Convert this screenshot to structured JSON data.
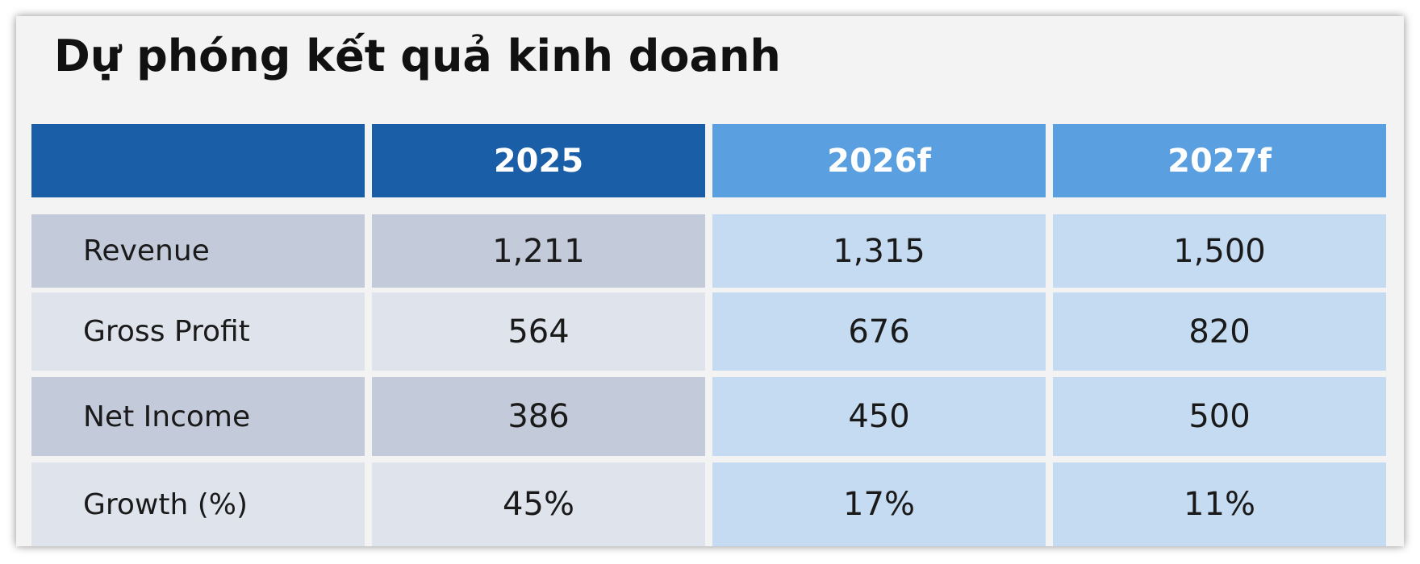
{
  "title": "Dự phóng kết quả kinh doanh",
  "table": {
    "header": [
      "2025",
      "2026f",
      "2027f"
    ],
    "rows": [
      [
        "Revenue",
        "1,211",
        "1,315",
        "1,500"
      ],
      [
        "Gross Profit",
        "564",
        "676",
        "820"
      ],
      [
        "Net Income",
        "386",
        "450",
        "500"
      ],
      [
        "Growth (%)",
        "45%",
        "17%",
        "11%"
      ]
    ]
  }
}
